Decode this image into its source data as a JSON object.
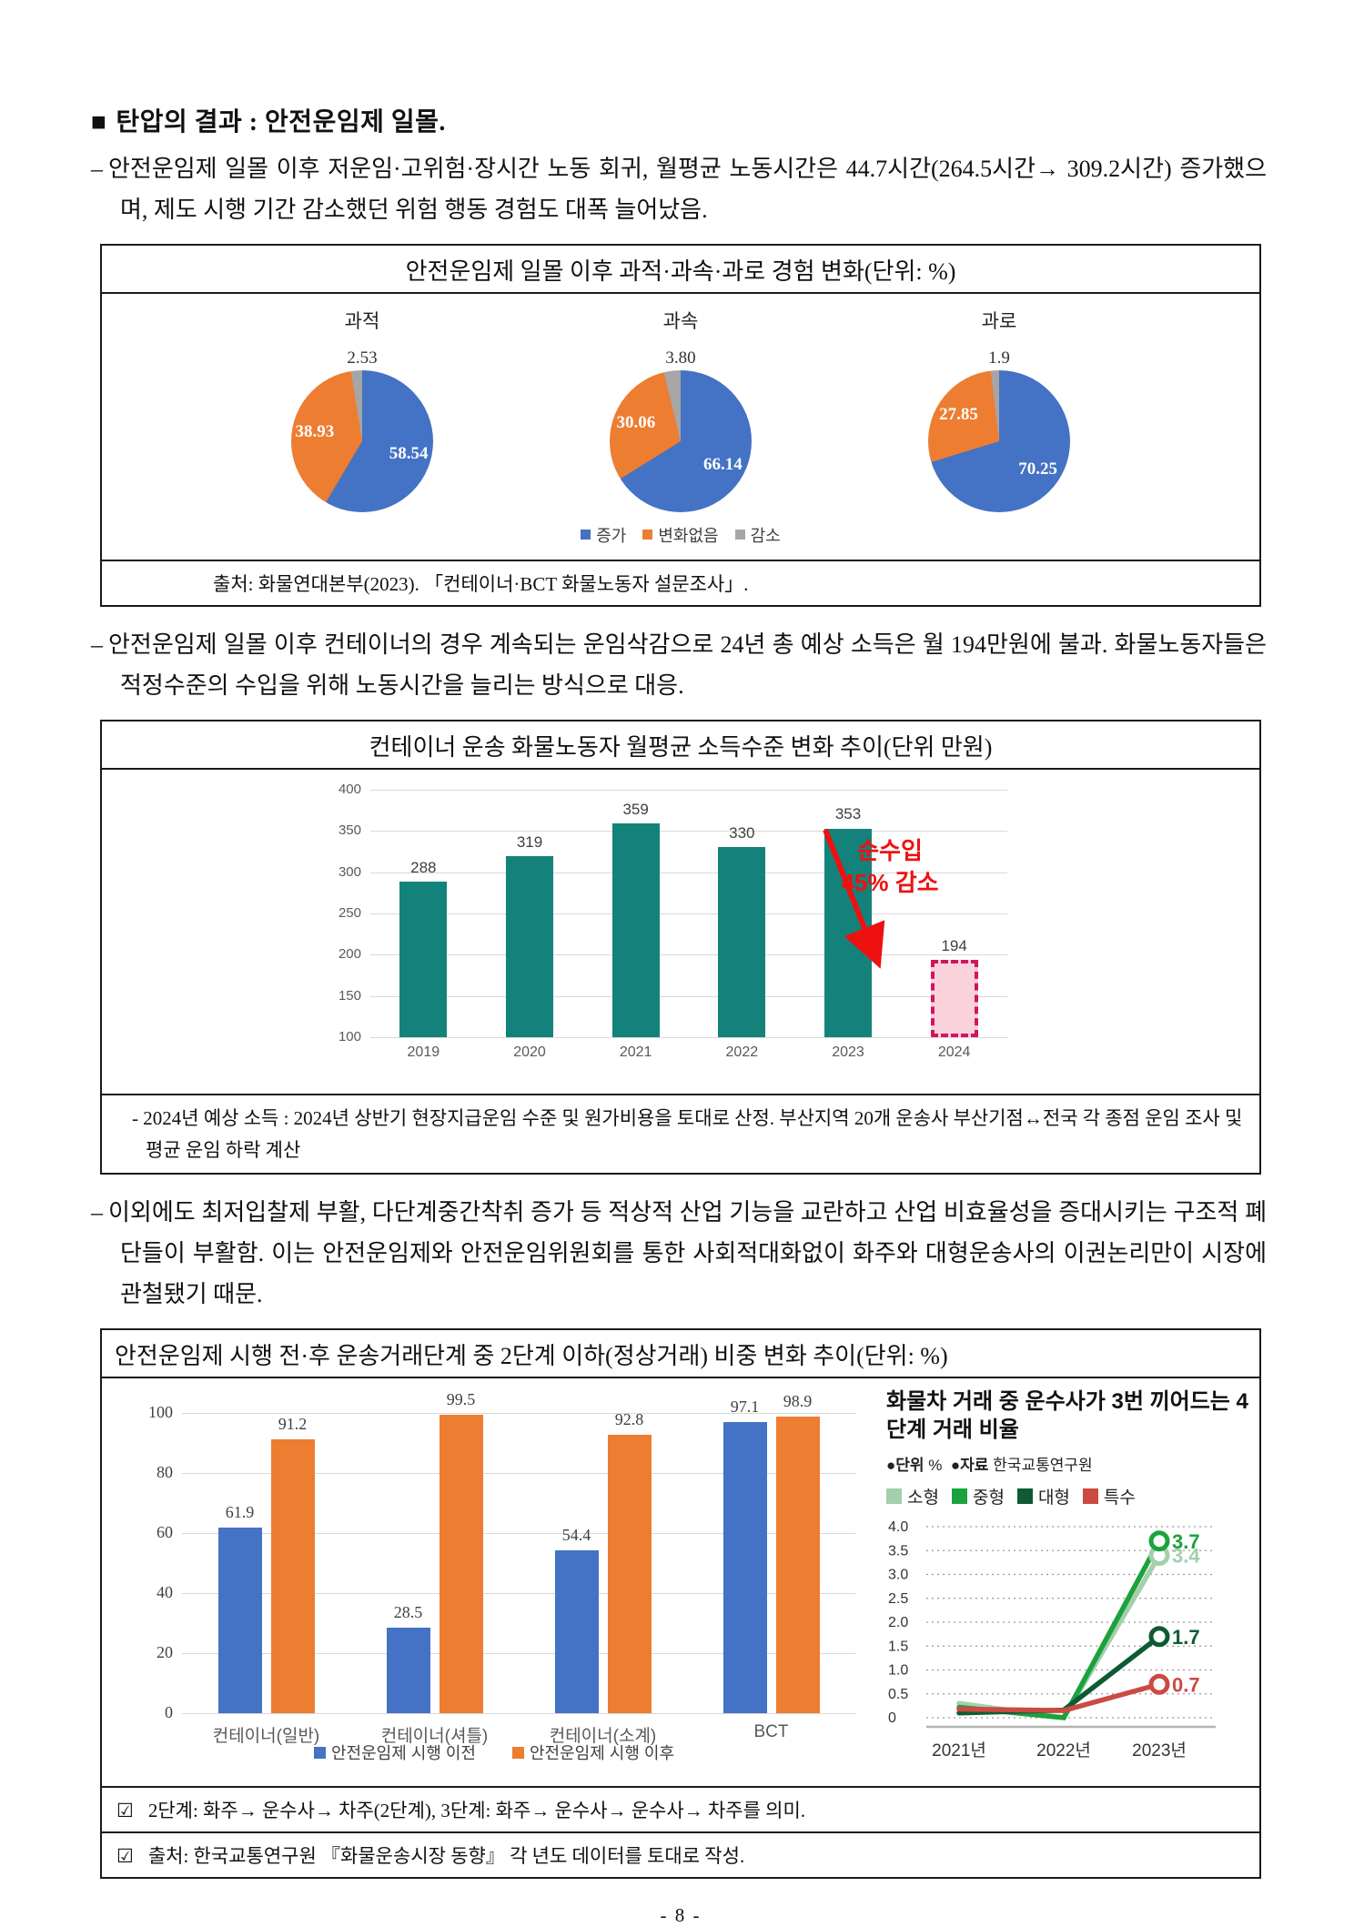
{
  "heading": {
    "bullet": "■",
    "text": "탄압의 결과 : 안전운임제 일몰."
  },
  "paragraphs": [
    {
      "dash": "–",
      "text": "안전운임제 일몰 이후 저운임·고위험·장시간 노동 회귀, 월평균 노동시간은 44.7시간(264.5시간→ 309.2시간) 증가했으며, 제도 시행 기간 감소했던 위험 행동 경험도 대폭 늘어났음."
    },
    {
      "dash": "–",
      "text": "안전운임제 일몰 이후 컨테이너의 경우 계속되는 운임삭감으로 24년 총 예상 소득은 월 194만원에 불과. 화물노동자들은 적정수준의 수입을 위해 노동시간을 늘리는 방식으로 대응."
    },
    {
      "dash": "–",
      "text": "이외에도 최저입찰제 부활, 다단계중간착취 증가 등 적상적 산업 기능을 교란하고 산업 비효율성을 증대시키는 구조적 폐단들이 부활함. 이는 안전운임제와 안전운임위원회를 통한 사회적대화없이 화주와 대형운송사의 이권논리만이 시장에 관철됐기 때문."
    }
  ],
  "chart_data": [
    {
      "type": "pie",
      "title": "안전운임제 일몰 이후 과적·과속·과로 경험 변화(단위: %)",
      "legend": [
        "증가",
        "변화없음",
        "감소"
      ],
      "colors": [
        "#4472C4",
        "#ED7D31",
        "#A6A6A6"
      ],
      "pies": [
        {
          "label": "과적",
          "segments": [
            {
              "name": "증가",
              "value": 58.54,
              "display": "58.54"
            },
            {
              "name": "변화없음",
              "value": 38.93,
              "display": "38.93"
            },
            {
              "name": "감소",
              "value": 2.53,
              "display": "2.53"
            }
          ]
        },
        {
          "label": "과속",
          "segments": [
            {
              "name": "증가",
              "value": 66.14,
              "display": "66.14"
            },
            {
              "name": "변화없음",
              "value": 30.06,
              "display": "30.06"
            },
            {
              "name": "감소",
              "value": 3.8,
              "display": "3.80"
            }
          ]
        },
        {
          "label": "과로",
          "segments": [
            {
              "name": "증가",
              "value": 70.25,
              "display": "70.25"
            },
            {
              "name": "변화없음",
              "value": 27.85,
              "display": "27.85"
            },
            {
              "name": "감소",
              "value": 1.9,
              "display": "1.9"
            }
          ]
        }
      ],
      "source": "출처: 화물연대본부(2023). 「컨테이너·BCT 화물노동자 설문조사」."
    },
    {
      "type": "bar",
      "title": "컨테이너 운송 화물노동자 월평균 소득수준 변화 추이(단위 만원)",
      "categories": [
        "2019",
        "2020",
        "2021",
        "2022",
        "2023",
        "2024"
      ],
      "values": [
        288,
        319,
        359,
        330,
        353,
        194
      ],
      "bar_color": "#13827B",
      "ylim": [
        100,
        400
      ],
      "yticks": [
        400,
        350,
        300,
        250,
        200,
        150,
        100
      ],
      "grid": true,
      "highlight": {
        "category": "2024",
        "fill": "#FAD2DC",
        "border": "#D4145A"
      },
      "annotation": {
        "line1": "순수입",
        "line2": "45% 감소",
        "color": "#EE1111"
      },
      "footnote": "- 2024년 예상 소득 : 2024년 상반기 현장지급운임 수준 및 원가비용을 토대로 산정. 부산지역 20개 운송사 부산기점↔전국 각 종점 운임 조사 및 평균 운임 하락 계산"
    },
    {
      "type": "bar",
      "title": "안전운임제 시행 전·후 운송거래단계 중 2단계 이하(정상거래) 비중 변화 추이(단위: %)",
      "categories": [
        "컨테이너(일반)",
        "컨테이너(셔틀)",
        "컨테이너(소계)",
        "BCT"
      ],
      "series": [
        {
          "name": "안전운임제 시행 이전",
          "color": "#4472C4",
          "values": [
            61.9,
            28.5,
            54.4,
            97.1
          ]
        },
        {
          "name": "안전운임제 시행 이후",
          "color": "#ED7D31",
          "values": [
            91.2,
            99.5,
            92.8,
            98.9
          ]
        }
      ],
      "ylim": [
        0,
        100
      ],
      "yticks": [
        100,
        80,
        60,
        40,
        20,
        0
      ],
      "grid": true,
      "legend_position": "bottom",
      "footnotes": [
        {
          "mark": "☑",
          "text": "2단계: 화주→ 운수사→ 차주(2단계), 3단계: 화주→ 운수사→ 운수사→ 차주를 의미."
        },
        {
          "mark": "☑",
          "text": "출처: 한국교통연구원 『화물운송시장 동향』 각 년도 데이터를 토대로 작성."
        }
      ]
    },
    {
      "type": "line",
      "title": "화물차 거래 중 운수사가 3번 끼어드는 4단계 거래 비율",
      "meta": {
        "unit_label": "●단위",
        "unit": "%",
        "source_label": "●자료",
        "source": "한국교통연구원"
      },
      "x": [
        "2021년",
        "2022년",
        "2023년"
      ],
      "series": [
        {
          "name": "소형",
          "color": "#A3CFAC",
          "values": [
            0.3,
            0.0,
            3.4
          ],
          "end_label": "3.4"
        },
        {
          "name": "중형",
          "color": "#1CA23C",
          "values": [
            0.22,
            0.0,
            3.7
          ],
          "end_label": "3.7"
        },
        {
          "name": "대형",
          "color": "#0E5B33",
          "values": [
            0.1,
            0.16,
            1.7
          ],
          "end_label": "1.7"
        },
        {
          "name": "특수",
          "color": "#CB4A42",
          "values": [
            0.18,
            0.15,
            0.7
          ],
          "end_label": "0.7"
        }
      ],
      "yticks": [
        4.0,
        3.5,
        3.0,
        2.5,
        2.0,
        1.5,
        1.0,
        0.5,
        0
      ],
      "ylim": [
        0,
        4.0
      ],
      "grid": "dotted"
    }
  ],
  "page_number": "- 8 -"
}
